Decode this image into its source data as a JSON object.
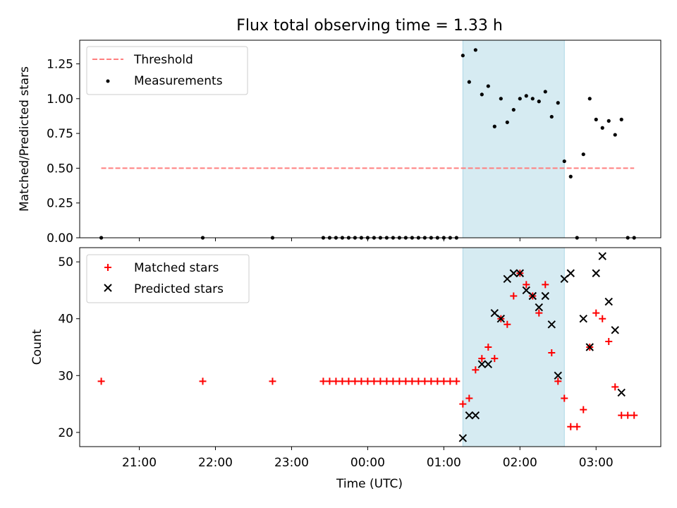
{
  "chart_data": {
    "title": "Flux total observing time = 1.33 h",
    "xlabel": "Time (UTC)",
    "x_ticks": [
      "21:00",
      "22:00",
      "23:00",
      "00:00",
      "01:00",
      "02:00",
      "03:00"
    ],
    "x_range": [
      "20:13",
      "03:51"
    ],
    "shaded_interval": [
      "01:15",
      "02:35"
    ],
    "colors": {
      "threshold": "#ff7f7f",
      "measurements": "#000000",
      "matched": "#ff0000",
      "predicted": "#000000",
      "shade": "#add8e6"
    },
    "top": {
      "type": "scatter",
      "ylabel": "Matched/Predicted stars",
      "ylim": [
        0,
        1.42
      ],
      "y_ticks": [
        "0.00",
        "0.25",
        "0.50",
        "0.75",
        "1.00",
        "1.25"
      ],
      "legend_position": "top-left",
      "threshold": {
        "name": "Threshold",
        "value": 0.5,
        "x_start": "20:30",
        "x_end": "03:30"
      },
      "measurements": {
        "name": "Measurements",
        "points": [
          [
            "20:30",
            0.0
          ],
          [
            "21:50",
            0.0
          ],
          [
            "22:45",
            0.0
          ],
          [
            "23:25",
            0.0
          ],
          [
            "23:30",
            0.0
          ],
          [
            "23:35",
            0.0
          ],
          [
            "23:40",
            0.0
          ],
          [
            "23:45",
            0.0
          ],
          [
            "23:50",
            0.0
          ],
          [
            "23:55",
            0.0
          ],
          [
            "00:00",
            0.0
          ],
          [
            "00:05",
            0.0
          ],
          [
            "00:10",
            0.0
          ],
          [
            "00:15",
            0.0
          ],
          [
            "00:20",
            0.0
          ],
          [
            "00:25",
            0.0
          ],
          [
            "00:30",
            0.0
          ],
          [
            "00:35",
            0.0
          ],
          [
            "00:40",
            0.0
          ],
          [
            "00:45",
            0.0
          ],
          [
            "00:50",
            0.0
          ],
          [
            "00:55",
            0.0
          ],
          [
            "01:00",
            0.0
          ],
          [
            "01:05",
            0.0
          ],
          [
            "01:10",
            0.0
          ],
          [
            "01:15",
            1.31
          ],
          [
            "01:20",
            1.12
          ],
          [
            "01:25",
            1.35
          ],
          [
            "01:30",
            1.03
          ],
          [
            "01:35",
            1.09
          ],
          [
            "01:40",
            0.8
          ],
          [
            "01:45",
            1.0
          ],
          [
            "01:50",
            0.83
          ],
          [
            "01:55",
            0.92
          ],
          [
            "02:00",
            1.0
          ],
          [
            "02:05",
            1.02
          ],
          [
            "02:10",
            1.0
          ],
          [
            "02:15",
            0.98
          ],
          [
            "02:20",
            1.05
          ],
          [
            "02:25",
            0.87
          ],
          [
            "02:30",
            0.97
          ],
          [
            "02:35",
            0.55
          ],
          [
            "02:40",
            0.44
          ],
          [
            "02:45",
            0.0
          ],
          [
            "02:50",
            0.6
          ],
          [
            "02:55",
            1.0
          ],
          [
            "03:00",
            0.85
          ],
          [
            "03:05",
            0.79
          ],
          [
            "03:10",
            0.84
          ],
          [
            "03:15",
            0.74
          ],
          [
            "03:20",
            0.85
          ],
          [
            "03:25",
            0.0
          ],
          [
            "03:30",
            0.0
          ]
        ]
      }
    },
    "bottom": {
      "type": "scatter",
      "ylabel": "Count",
      "ylim": [
        17.5,
        52.5
      ],
      "y_ticks": [
        "20",
        "30",
        "40",
        "50"
      ],
      "legend_position": "top-left",
      "matched": {
        "name": "Matched stars",
        "points": [
          [
            "20:30",
            29
          ],
          [
            "21:50",
            29
          ],
          [
            "22:45",
            29
          ],
          [
            "23:25",
            29
          ],
          [
            "23:30",
            29
          ],
          [
            "23:35",
            29
          ],
          [
            "23:40",
            29
          ],
          [
            "23:45",
            29
          ],
          [
            "23:50",
            29
          ],
          [
            "23:55",
            29
          ],
          [
            "00:00",
            29
          ],
          [
            "00:05",
            29
          ],
          [
            "00:10",
            29
          ],
          [
            "00:15",
            29
          ],
          [
            "00:20",
            29
          ],
          [
            "00:25",
            29
          ],
          [
            "00:30",
            29
          ],
          [
            "00:35",
            29
          ],
          [
            "00:40",
            29
          ],
          [
            "00:45",
            29
          ],
          [
            "00:50",
            29
          ],
          [
            "00:55",
            29
          ],
          [
            "01:00",
            29
          ],
          [
            "01:05",
            29
          ],
          [
            "01:10",
            29
          ],
          [
            "01:15",
            25
          ],
          [
            "01:20",
            26
          ],
          [
            "01:25",
            31
          ],
          [
            "01:30",
            33
          ],
          [
            "01:35",
            35
          ],
          [
            "01:40",
            33
          ],
          [
            "01:45",
            40
          ],
          [
            "01:50",
            39
          ],
          [
            "01:55",
            44
          ],
          [
            "02:00",
            48
          ],
          [
            "02:05",
            46
          ],
          [
            "02:10",
            44
          ],
          [
            "02:15",
            41
          ],
          [
            "02:20",
            46
          ],
          [
            "02:25",
            34
          ],
          [
            "02:30",
            29
          ],
          [
            "02:35",
            26
          ],
          [
            "02:40",
            21
          ],
          [
            "02:45",
            21
          ],
          [
            "02:50",
            24
          ],
          [
            "02:55",
            35
          ],
          [
            "03:00",
            41
          ],
          [
            "03:05",
            40
          ],
          [
            "03:10",
            36
          ],
          [
            "03:15",
            28
          ],
          [
            "03:20",
            23
          ],
          [
            "03:25",
            23
          ],
          [
            "03:30",
            23
          ]
        ]
      },
      "predicted": {
        "name": "Predicted stars",
        "points": [
          [
            "01:15",
            19
          ],
          [
            "01:20",
            23
          ],
          [
            "01:25",
            23
          ],
          [
            "01:30",
            32
          ],
          [
            "01:35",
            32
          ],
          [
            "01:40",
            41
          ],
          [
            "01:45",
            40
          ],
          [
            "01:50",
            47
          ],
          [
            "01:55",
            48
          ],
          [
            "02:00",
            48
          ],
          [
            "02:05",
            45
          ],
          [
            "02:10",
            44
          ],
          [
            "02:15",
            42
          ],
          [
            "02:20",
            44
          ],
          [
            "02:25",
            39
          ],
          [
            "02:30",
            30
          ],
          [
            "02:35",
            47
          ],
          [
            "02:40",
            48
          ],
          [
            "02:50",
            40
          ],
          [
            "02:55",
            35
          ],
          [
            "03:00",
            48
          ],
          [
            "03:05",
            51
          ],
          [
            "03:10",
            43
          ],
          [
            "03:15",
            38
          ],
          [
            "03:20",
            27
          ]
        ]
      }
    }
  }
}
